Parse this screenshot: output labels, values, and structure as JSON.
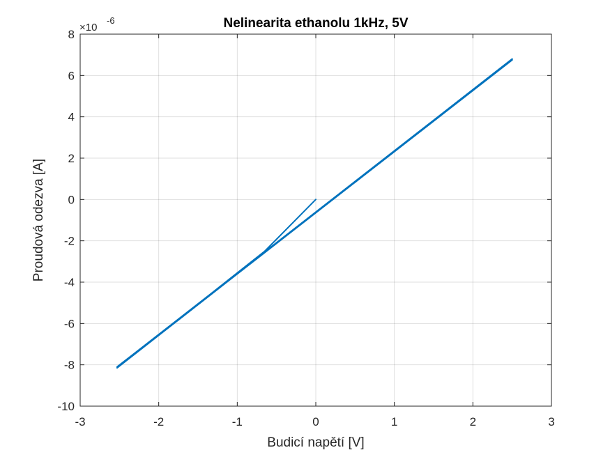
{
  "chart_data": {
    "type": "line",
    "title": "Nelinearita ethanolu 1kHz, 5V",
    "xlabel": "Budicí napětí [V]",
    "ylabel": "Proudová odezva [A]",
    "y_multiplier": {
      "base": "×10",
      "exponent": "-6"
    },
    "xlim": [
      -3,
      3
    ],
    "ylim": [
      -10,
      8
    ],
    "x_ticks": [
      -3,
      -2,
      -1,
      0,
      1,
      2,
      3
    ],
    "y_ticks": [
      -10,
      -8,
      -6,
      -4,
      -2,
      0,
      2,
      4,
      6,
      8
    ],
    "x_tick_labels": [
      "-3",
      "-2",
      "-1",
      "0",
      "1",
      "2",
      "3"
    ],
    "y_tick_labels": [
      "-10",
      "-8",
      "-6",
      "-4",
      "-2",
      "0",
      "2",
      "4",
      "6",
      "8"
    ],
    "grid": true,
    "legend": "none",
    "series_color": "#0072BD",
    "series": [
      {
        "x": [
          0.0,
          -0.65,
          -2.53,
          2.5,
          -2.53,
          2.5,
          -2.53,
          2.5
        ],
        "y": [
          0.0,
          -2.5,
          -8.15,
          6.8,
          -8.1,
          6.78,
          -8.13,
          6.75
        ]
      }
    ]
  }
}
